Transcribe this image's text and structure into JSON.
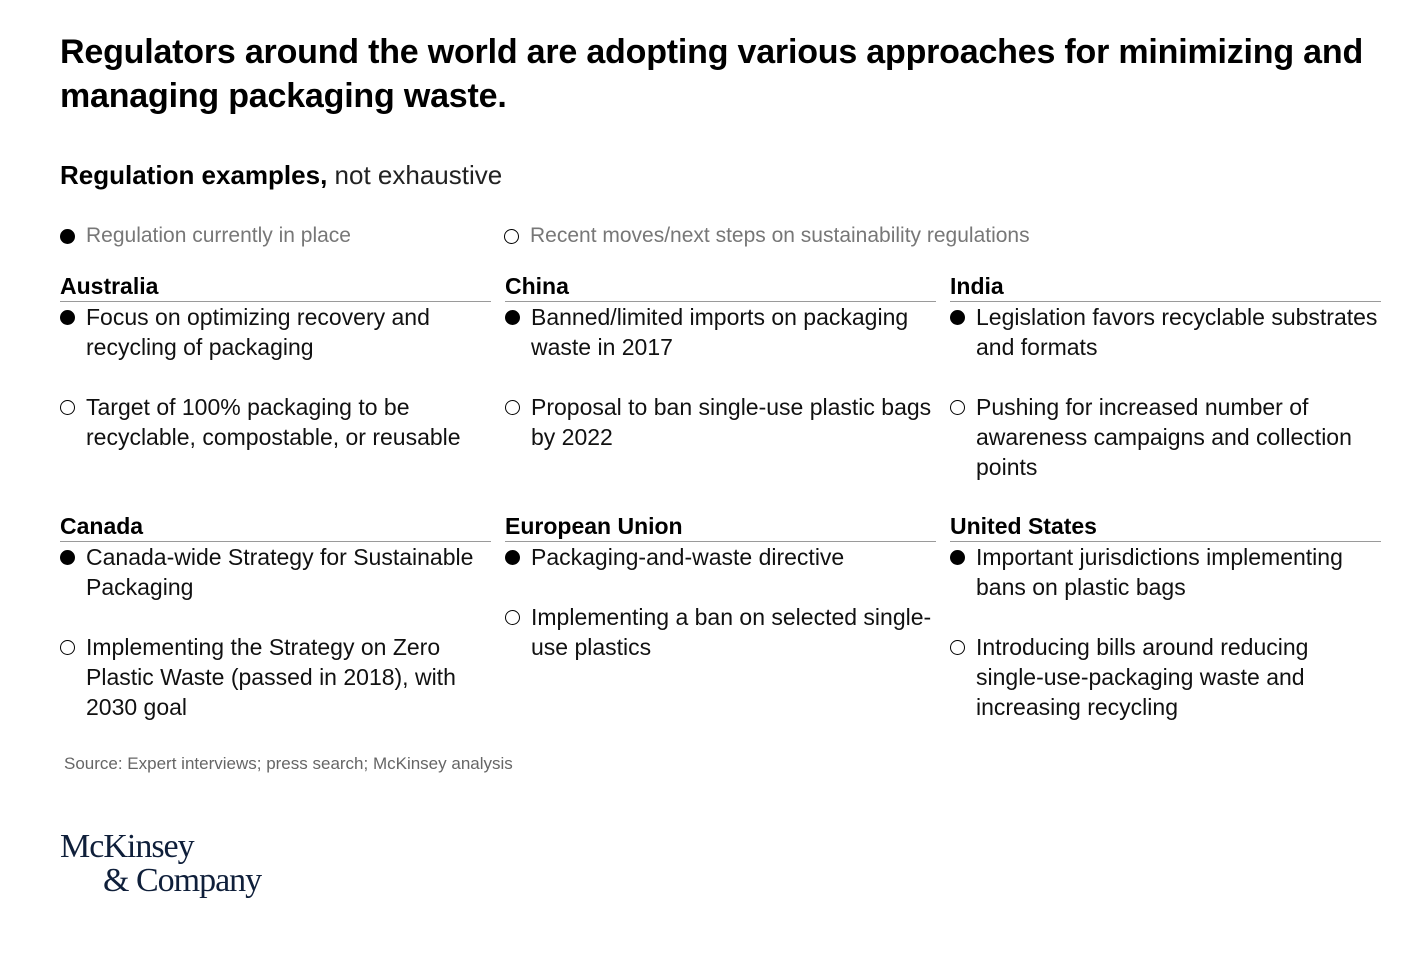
{
  "header": {
    "title": "Regulators around the world are adopting various approaches for minimizing and managing packaging waste.",
    "subtitle_bold": "Regulation examples,",
    "subtitle_normal": "not exhaustive"
  },
  "legend": {
    "in_place": "Regulation currently in place",
    "next_steps": "Recent moves/next steps on sustainability regulations"
  },
  "regions": [
    {
      "name": "Australia",
      "in_place": "Focus on optimizing recovery and recycling of packaging",
      "next_step": "Target of 100% packaging to be recyclable, compostable, or reusable"
    },
    {
      "name": "China",
      "in_place": "Banned/limited imports on packaging waste in 2017",
      "next_step": "Proposal to ban single-use plastic bags by 2022"
    },
    {
      "name": "India",
      "in_place": "Legislation favors recyclable substrates and formats",
      "next_step": "Pushing for increased number of awareness campaigns and collection points"
    },
    {
      "name": "Canada",
      "in_place": "Canada-wide Strategy for Sustainable Packaging",
      "next_step": "Implementing the Strategy on Zero Plastic Waste (passed in 2018), with 2030 goal"
    },
    {
      "name": "European Union",
      "in_place": "Packaging-and-waste directive",
      "next_step": "Implementing a ban on selected single-use plastics"
    },
    {
      "name": "United States",
      "in_place": "Important jurisdictions implementing bans on plastic bags",
      "next_step": "Introducing bills around reducing single-use-packaging waste and increasing recycling"
    }
  ],
  "footer": {
    "source": "Source: Expert interviews; press search; McKinsey analysis",
    "logo_line1": "McKinsey",
    "logo_line2": "& Company"
  },
  "colors": {
    "text": "#000000",
    "muted": "#777777",
    "rule": "#9a9a9a",
    "logo": "#0f1f3a"
  },
  "icons": {
    "in_place": "filled-circle-icon",
    "next_steps": "hollow-circle-icon"
  }
}
